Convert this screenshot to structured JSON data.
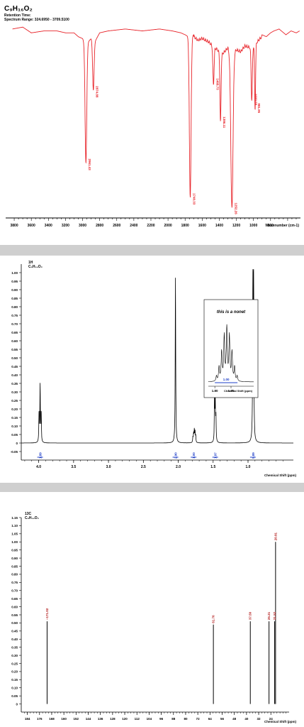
{
  "chart_data": [
    {
      "type": "line",
      "id": "ir",
      "header": {
        "formula": "C₉H₁₆O₂",
        "line1": "Retention Time:",
        "line2": "Spectrum Range: 324.6950 - 3709.5100"
      },
      "xlabel": "Wavenumber (cm-1)",
      "xlim": [
        3900,
        450
      ],
      "ylim": [
        0,
        105
      ],
      "tick_labels": [
        "3800",
        "3600",
        "3400",
        "3200",
        "3000",
        "2800",
        "2600",
        "2400",
        "2200",
        "2000",
        "1800",
        "1600",
        "1400",
        "1200",
        "1000",
        "800"
      ],
      "color": "#e8252b",
      "baseline": [
        [
          3820,
          98
        ],
        [
          3700,
          99
        ],
        [
          3600,
          96
        ],
        [
          3450,
          97
        ],
        [
          3300,
          97
        ],
        [
          3200,
          96
        ],
        [
          3100,
          96
        ],
        [
          3050,
          94
        ],
        [
          3000,
          93
        ],
        [
          2960,
          90
        ],
        [
          2900,
          93
        ],
        [
          2860,
          91
        ],
        [
          2800,
          96
        ],
        [
          2700,
          97
        ],
        [
          2500,
          98
        ],
        [
          2300,
          97
        ],
        [
          2100,
          98
        ],
        [
          1950,
          97
        ],
        [
          1850,
          96
        ],
        [
          1800,
          95
        ],
        [
          1760,
          94
        ],
        [
          1700,
          95
        ],
        [
          1650,
          93
        ],
        [
          1600,
          94
        ],
        [
          1520,
          92
        ],
        [
          1480,
          90
        ],
        [
          1420,
          88
        ],
        [
          1380,
          85
        ],
        [
          1300,
          89
        ],
        [
          1270,
          86
        ],
        [
          1200,
          88
        ],
        [
          1150,
          87
        ],
        [
          1100,
          90
        ],
        [
          1020,
          89
        ],
        [
          980,
          91
        ],
        [
          940,
          93
        ],
        [
          900,
          95
        ],
        [
          850,
          94
        ],
        [
          800,
          96
        ],
        [
          760,
          97
        ],
        [
          700,
          98
        ],
        [
          620,
          95
        ],
        [
          560,
          97
        ],
        [
          500,
          96
        ],
        [
          460,
          97
        ]
      ],
      "peaks": [
        {
          "x": 2961,
          "y": 28,
          "w": 14,
          "label": "2961.43"
        },
        {
          "x": 2874,
          "y": 66,
          "w": 12,
          "label": "2874.88"
        },
        {
          "x": 1740,
          "y": 10,
          "w": 14,
          "label": "1740.33"
        },
        {
          "x": 1468,
          "y": 70,
          "w": 10,
          "label": "1468.73"
        },
        {
          "x": 1386,
          "y": 50,
          "w": 9,
          "label": "1386.11"
        },
        {
          "x": 1252,
          "y": 5,
          "w": 18,
          "label": "1252.26"
        },
        {
          "x": 1020,
          "y": 62,
          "w": 10,
          "label": "1020.58"
        },
        {
          "x": 981,
          "y": 57,
          "w": 8,
          "label": "981.95"
        }
      ]
    },
    {
      "type": "line",
      "id": "h1",
      "nucleus": "1H",
      "formula": "C₉H₁₆O₂",
      "xlabel": "Chemical Shift (ppm)",
      "xlim": [
        4.25,
        0.35
      ],
      "ylim": [
        -0.1,
        1.05
      ],
      "y_ticks": [
        "1.00",
        "0.95",
        "0.90",
        "0.85",
        "0.80",
        "0.75",
        "0.70",
        "0.65",
        "0.60",
        "0.55",
        "0.50",
        "0.45",
        "0.40",
        "0.35",
        "0.30",
        "0.25",
        "0.20",
        "0.15",
        "0.10",
        "0.05",
        "0",
        "-0.05"
      ],
      "y_tick_values": [
        1.0,
        0.95,
        0.9,
        0.85,
        0.8,
        0.75,
        0.7,
        0.65,
        0.6,
        0.55,
        0.5,
        0.45,
        0.4,
        0.35,
        0.3,
        0.25,
        0.2,
        0.15,
        0.1,
        0.05,
        0,
        -0.05
      ],
      "x_ticks": [
        "4.0",
        "3.5",
        "3.0",
        "2.5",
        "2.0",
        "1.5",
        "1.0"
      ],
      "x_tick_values": [
        4.0,
        3.5,
        3.0,
        2.5,
        2.0,
        1.5,
        1.0
      ],
      "peaks": [
        {
          "ppm": 3.98,
          "h": 0.33
        },
        {
          "ppm": 3.965,
          "h": 0.17
        },
        {
          "ppm": 3.995,
          "h": 0.17
        },
        {
          "ppm": 2.04,
          "h": 0.97
        },
        {
          "ppm": 1.79,
          "h": 0.03
        },
        {
          "ppm": 1.78,
          "h": 0.05
        },
        {
          "ppm": 1.77,
          "h": 0.07
        },
        {
          "ppm": 1.76,
          "h": 0.06
        },
        {
          "ppm": 1.75,
          "h": 0.04
        },
        {
          "ppm": 1.48,
          "h": 0.24
        },
        {
          "ppm": 1.47,
          "h": 0.24
        },
        {
          "ppm": 1.46,
          "h": 0.14
        },
        {
          "ppm": 0.93,
          "h": 1.0
        },
        {
          "ppm": 0.92,
          "h": 0.97
        }
      ],
      "integrals": [
        {
          "ppm": 3.98,
          "label": "1.89"
        },
        {
          "ppm": 2.04,
          "label": "2.90"
        },
        {
          "ppm": 1.78,
          "label": "1.00"
        },
        {
          "ppm": 1.47,
          "label": "1.97"
        },
        {
          "ppm": 0.93,
          "label": "5.89"
        }
      ],
      "inset": {
        "title": "this is a nonet",
        "xlabel": "Chemical Shift (ppm)",
        "x_ticks": [
          "1.80",
          "1.75"
        ],
        "x_tick_values": [
          1.8,
          1.75
        ],
        "xlim": [
          1.82,
          1.68
        ],
        "integral": "1.00",
        "lines": [
          {
            "ppm": 1.795,
            "h": 0.08
          },
          {
            "ppm": 1.787,
            "h": 0.22
          },
          {
            "ppm": 1.779,
            "h": 0.45
          },
          {
            "ppm": 1.771,
            "h": 0.7
          },
          {
            "ppm": 1.763,
            "h": 0.82
          },
          {
            "ppm": 1.755,
            "h": 0.7
          },
          {
            "ppm": 1.747,
            "h": 0.45
          },
          {
            "ppm": 1.739,
            "h": 0.22
          },
          {
            "ppm": 1.731,
            "h": 0.08
          }
        ]
      }
    },
    {
      "type": "bar",
      "id": "c13",
      "nucleus": "13C",
      "formula": "C₉H₁₆O₂",
      "xlabel": "Chemical Shift (ppm)",
      "xlim": [
        188,
        12
      ],
      "ylim": [
        -0.05,
        1.15
      ],
      "y_ticks": [
        "1.15",
        "1.10",
        "1.05",
        "1.00",
        "0.95",
        "0.90",
        "0.85",
        "0.80",
        "0.75",
        "0.70",
        "0.65",
        "0.60",
        "0.55",
        "0.50",
        "0.45",
        "0.40",
        "0.35",
        "0.30",
        "0.25",
        "0.20",
        "0.15",
        "0.10",
        "0.05",
        "0"
      ],
      "y_tick_values": [
        1.15,
        1.1,
        1.05,
        1.0,
        0.95,
        0.9,
        0.85,
        0.8,
        0.75,
        0.7,
        0.65,
        0.6,
        0.55,
        0.5,
        0.45,
        0.4,
        0.35,
        0.3,
        0.25,
        0.2,
        0.15,
        0.1,
        0.05,
        0
      ],
      "x_ticks": [
        "184",
        "176",
        "168",
        "160",
        "152",
        "144",
        "136",
        "128",
        "120",
        "112",
        "104",
        "96",
        "88",
        "80",
        "72",
        "64",
        "56",
        "48",
        "40",
        "32",
        "24"
      ],
      "x_tick_values": [
        184,
        176,
        168,
        160,
        152,
        144,
        136,
        128,
        120,
        112,
        104,
        96,
        88,
        80,
        72,
        64,
        56,
        48,
        40,
        32,
        24
      ],
      "peaks": [
        {
          "ppm": 171.02,
          "h": 0.51,
          "label": "~171.02"
        },
        {
          "ppm": 61.76,
          "h": 0.49,
          "label": "61.76"
        },
        {
          "ppm": 37.5,
          "h": 0.51,
          "label": "37.50"
        },
        {
          "ppm": 25.21,
          "h": 0.51,
          "label": "25.21"
        },
        {
          "ppm": 20.91,
          "h": 1.0,
          "label": "20.91"
        },
        {
          "ppm": 21.52,
          "h": 0.51,
          "label": "21.52"
        }
      ]
    }
  ]
}
